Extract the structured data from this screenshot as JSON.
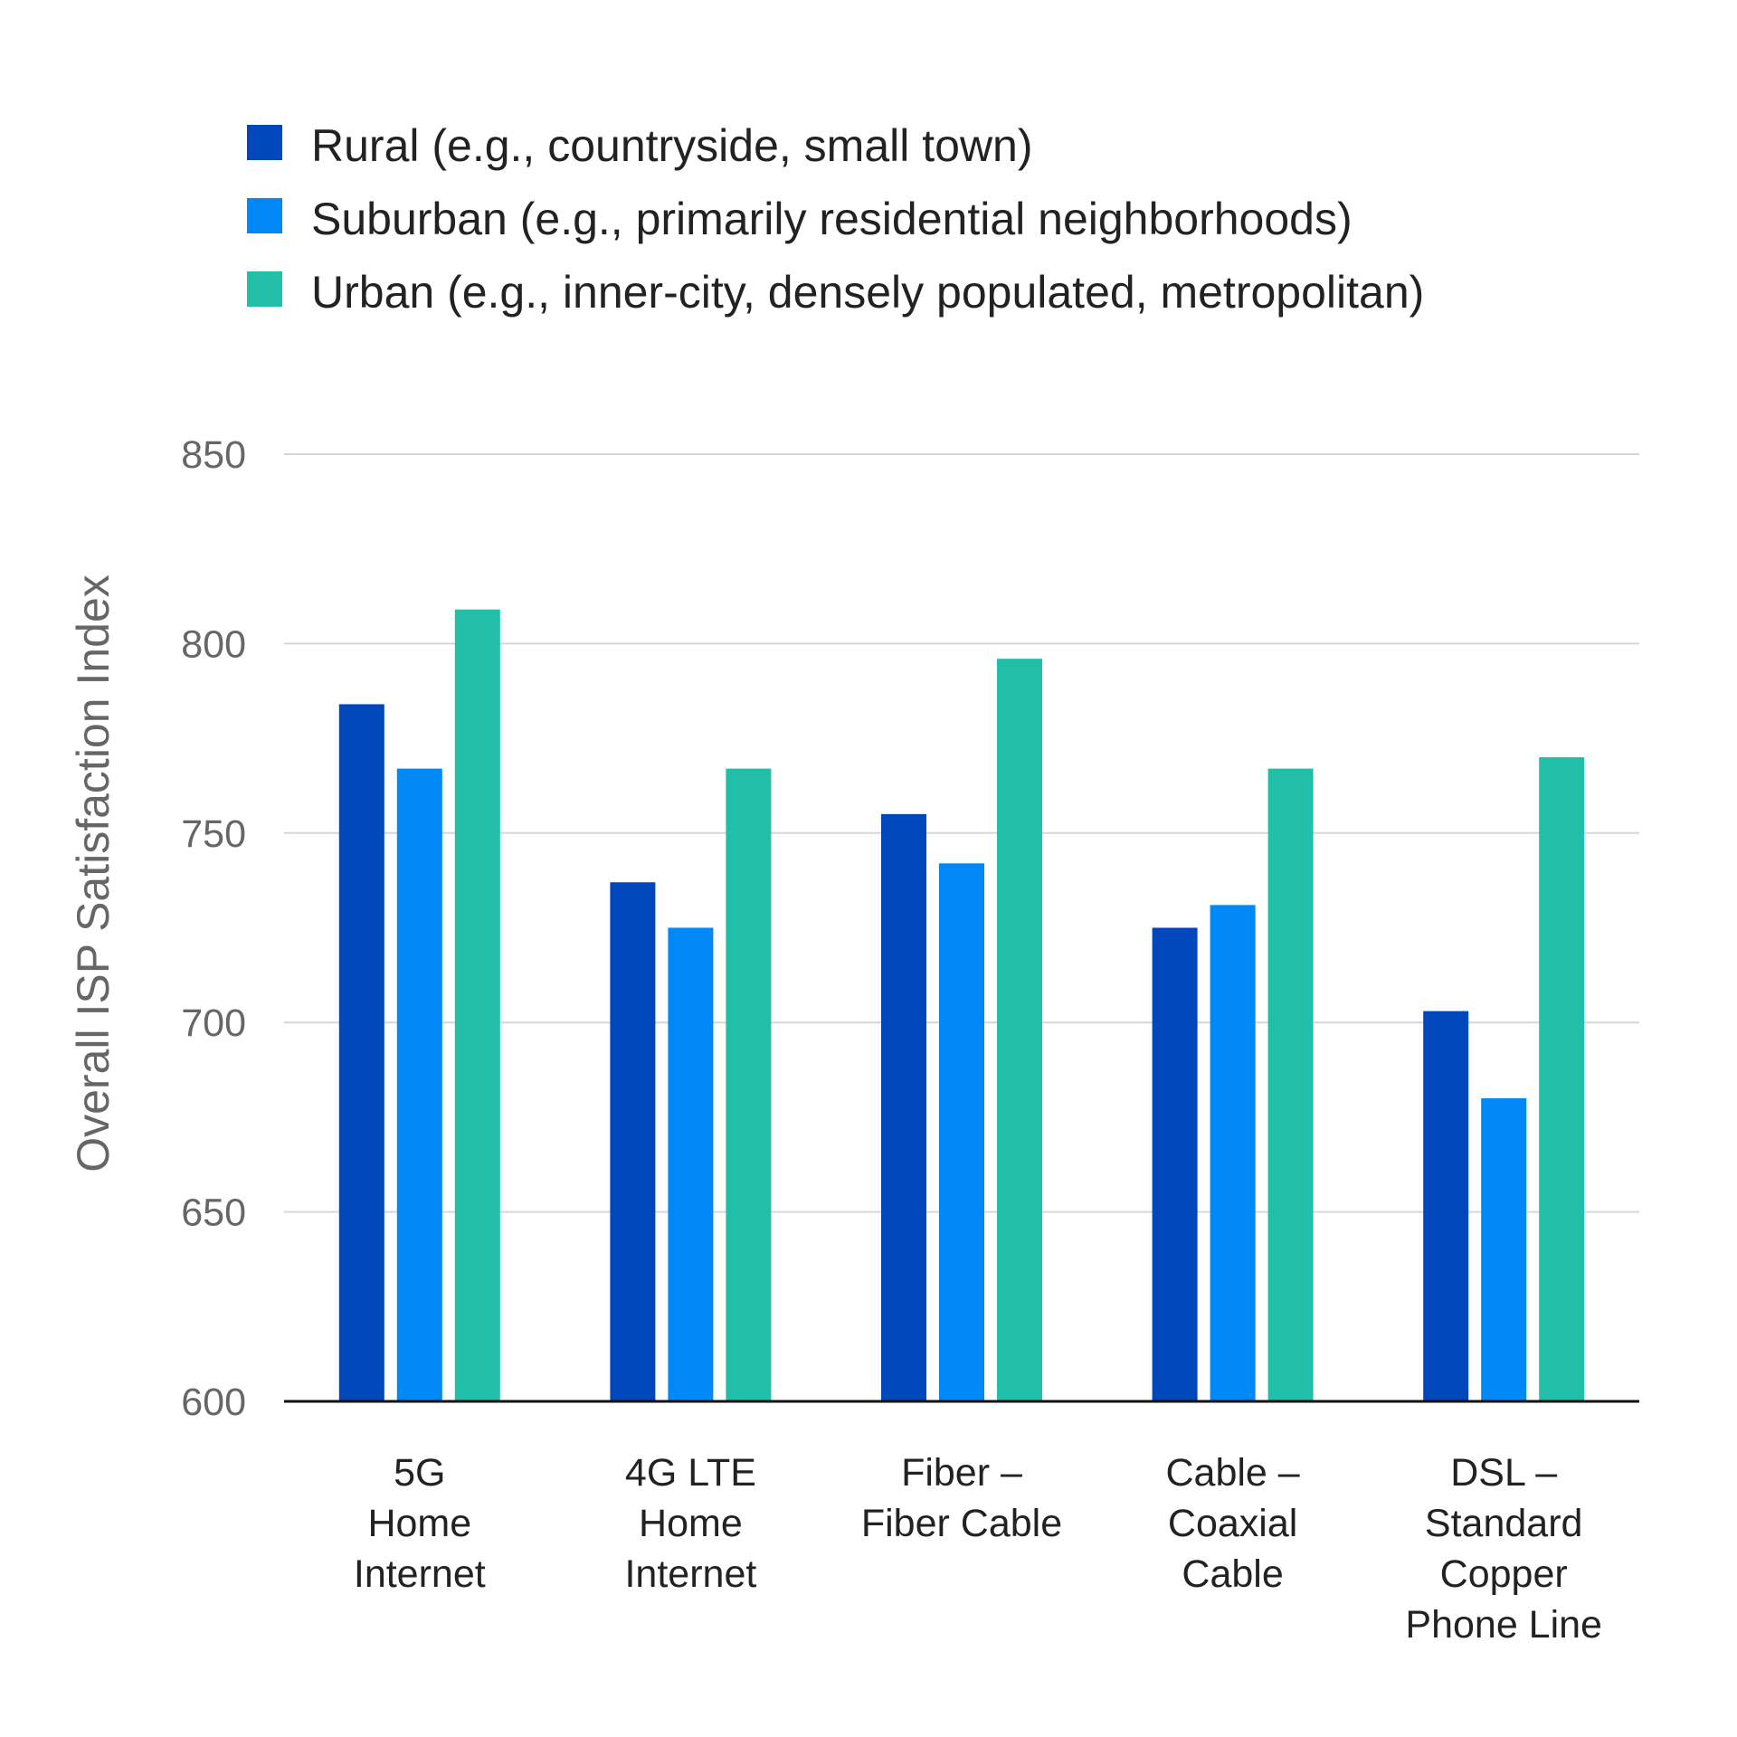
{
  "chart_data": {
    "type": "bar",
    "title": "",
    "xlabel": "",
    "ylabel": "Overall ISP Satisfaction Index",
    "ylim": [
      600,
      850
    ],
    "yticks": [
      600,
      650,
      700,
      750,
      800,
      850
    ],
    "grid": true,
    "legend_position": "top",
    "categories": [
      [
        "5G",
        "Home",
        "Internet"
      ],
      [
        "4G LTE",
        "Home",
        "Internet"
      ],
      [
        "Fiber –",
        "Fiber Cable"
      ],
      [
        "Cable –",
        "Coaxial",
        "Cable"
      ],
      [
        "DSL –",
        "Standard",
        "Copper",
        "Phone Line"
      ]
    ],
    "series": [
      {
        "name": "Rural (e.g., countryside, small town)",
        "color": "#0047BB",
        "values": [
          784,
          737,
          755,
          725,
          703
        ]
      },
      {
        "name": "Suburban (e.g., primarily residential neighborhoods)",
        "color": "#0088F7",
        "values": [
          767,
          725,
          742,
          731,
          680
        ]
      },
      {
        "name": "Urban (e.g., inner-city, densely populated, metropolitan)",
        "color": "#21BFA8",
        "values": [
          809,
          767,
          796,
          767,
          770
        ]
      }
    ]
  }
}
